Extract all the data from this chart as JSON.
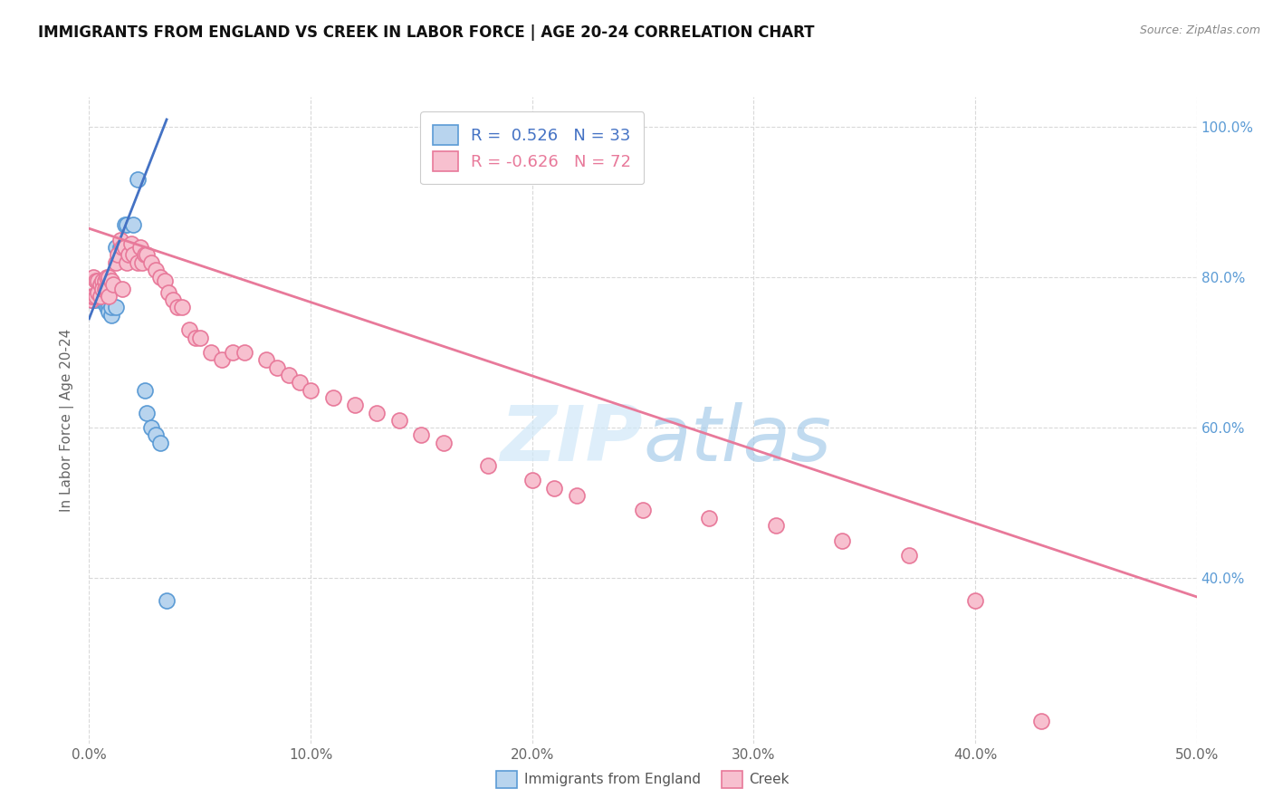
{
  "title": "IMMIGRANTS FROM ENGLAND VS CREEK IN LABOR FORCE | AGE 20-24 CORRELATION CHART",
  "source": "Source: ZipAtlas.com",
  "ylabel": "In Labor Force | Age 20-24",
  "legend_england": {
    "R": "0.526",
    "N": "33",
    "label": "Immigrants from England"
  },
  "legend_creek": {
    "R": "-0.626",
    "N": "72",
    "label": "Creek"
  },
  "england_color": "#b8d4ee",
  "creek_color": "#f7c0cf",
  "england_edge_color": "#5b9bd5",
  "creek_edge_color": "#e8799a",
  "england_line_color": "#4472c4",
  "creek_line_color": "#e8799a",
  "watermark_color": "#cce0f0",
  "background_color": "#ffffff",
  "grid_color": "#d9d9d9",
  "right_axis_color": "#5b9bd5",
  "england_scatter_x": [
    0.001,
    0.002,
    0.002,
    0.003,
    0.003,
    0.004,
    0.004,
    0.005,
    0.005,
    0.006,
    0.006,
    0.007,
    0.007,
    0.008,
    0.009,
    0.009,
    0.01,
    0.01,
    0.012,
    0.012,
    0.014,
    0.015,
    0.016,
    0.017,
    0.018,
    0.02,
    0.022,
    0.025,
    0.026,
    0.028,
    0.03,
    0.032,
    0.035
  ],
  "england_scatter_y": [
    0.77,
    0.77,
    0.77,
    0.77,
    0.775,
    0.775,
    0.775,
    0.775,
    0.78,
    0.775,
    0.77,
    0.77,
    0.765,
    0.76,
    0.76,
    0.755,
    0.75,
    0.76,
    0.84,
    0.76,
    0.84,
    0.84,
    0.87,
    0.87,
    0.84,
    0.87,
    0.93,
    0.65,
    0.62,
    0.6,
    0.59,
    0.58,
    0.37
  ],
  "creek_scatter_x": [
    0.001,
    0.001,
    0.002,
    0.002,
    0.003,
    0.003,
    0.004,
    0.004,
    0.005,
    0.005,
    0.006,
    0.006,
    0.007,
    0.007,
    0.008,
    0.008,
    0.009,
    0.009,
    0.01,
    0.011,
    0.012,
    0.013,
    0.014,
    0.015,
    0.015,
    0.016,
    0.017,
    0.018,
    0.019,
    0.02,
    0.022,
    0.023,
    0.024,
    0.025,
    0.026,
    0.028,
    0.03,
    0.032,
    0.034,
    0.036,
    0.038,
    0.04,
    0.042,
    0.045,
    0.048,
    0.05,
    0.055,
    0.06,
    0.065,
    0.07,
    0.08,
    0.085,
    0.09,
    0.095,
    0.1,
    0.11,
    0.12,
    0.13,
    0.14,
    0.15,
    0.16,
    0.18,
    0.2,
    0.21,
    0.22,
    0.25,
    0.28,
    0.31,
    0.34,
    0.37,
    0.4,
    0.43
  ],
  "creek_scatter_y": [
    0.77,
    0.775,
    0.8,
    0.775,
    0.795,
    0.775,
    0.795,
    0.78,
    0.79,
    0.775,
    0.795,
    0.785,
    0.795,
    0.785,
    0.8,
    0.785,
    0.8,
    0.775,
    0.795,
    0.79,
    0.82,
    0.83,
    0.85,
    0.84,
    0.785,
    0.84,
    0.82,
    0.83,
    0.845,
    0.83,
    0.82,
    0.84,
    0.82,
    0.83,
    0.83,
    0.82,
    0.81,
    0.8,
    0.795,
    0.78,
    0.77,
    0.76,
    0.76,
    0.73,
    0.72,
    0.72,
    0.7,
    0.69,
    0.7,
    0.7,
    0.69,
    0.68,
    0.67,
    0.66,
    0.65,
    0.64,
    0.63,
    0.62,
    0.61,
    0.59,
    0.58,
    0.55,
    0.53,
    0.52,
    0.51,
    0.49,
    0.48,
    0.47,
    0.45,
    0.43,
    0.37,
    0.21
  ],
  "xlim": [
    0.0,
    0.5
  ],
  "ylim": [
    0.18,
    1.04
  ],
  "xticks": [
    0.0,
    0.1,
    0.2,
    0.3,
    0.4,
    0.5
  ],
  "xtick_labels": [
    "0.0%",
    "10.0%",
    "20.0%",
    "30.0%",
    "40.0%",
    "50.0%"
  ],
  "yticks": [
    0.4,
    0.6,
    0.8,
    1.0
  ],
  "ytick_labels": [
    "40.0%",
    "60.0%",
    "80.0%",
    "100.0%"
  ],
  "england_line": {
    "x0": 0.0,
    "y0": 0.745,
    "x1": 0.035,
    "y1": 1.01
  },
  "creek_line": {
    "x0": 0.0,
    "y0": 0.865,
    "x1": 0.5,
    "y1": 0.375
  }
}
